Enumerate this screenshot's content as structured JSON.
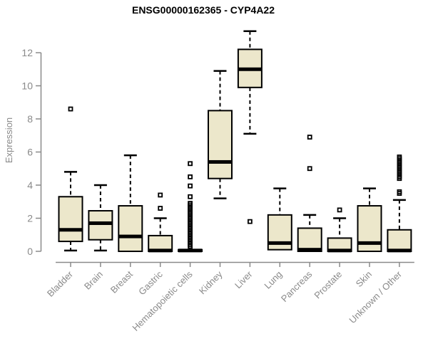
{
  "page": {
    "background": "#ffffff"
  },
  "chart_data": {
    "type": "boxplot",
    "title": "ENSG00000162365 - CYP4A22",
    "ylabel": "Expression",
    "xlabel": "",
    "ylim": [
      0,
      13.5
    ],
    "yticks": [
      0,
      2,
      4,
      6,
      8,
      10,
      12
    ],
    "grid": false,
    "legend": false,
    "categories": [
      "Bladder",
      "Brain",
      "Breast",
      "Gastric",
      "Hematopoietic cells",
      "Kidney",
      "Liver",
      "Lung",
      "Pancreas",
      "Prostate",
      "Skin",
      "Unknown / Other"
    ],
    "series": [
      {
        "category": "Bladder",
        "whisker_low": 0.05,
        "q1": 0.6,
        "median": 1.3,
        "q3": 3.3,
        "whisker_high": 4.8,
        "outliers": [
          8.6
        ]
      },
      {
        "category": "Brain",
        "whisker_low": 0.05,
        "q1": 0.7,
        "median": 1.7,
        "q3": 2.45,
        "whisker_high": 4.0,
        "outliers": []
      },
      {
        "category": "Breast",
        "whisker_low": null,
        "q1": 0.0,
        "median": 0.9,
        "q3": 2.75,
        "whisker_high": 5.8,
        "outliers": []
      },
      {
        "category": "Gastric",
        "whisker_low": null,
        "q1": 0.0,
        "median": 0.05,
        "q3": 0.95,
        "whisker_high": 2.0,
        "outliers": [
          2.6,
          3.4
        ]
      },
      {
        "category": "Hematopoietic cells",
        "whisker_low": null,
        "q1": 0.0,
        "median": 0.05,
        "q3": 0.1,
        "whisker_high": null,
        "outliers": [
          0.3,
          0.4,
          0.5,
          0.6,
          0.7,
          0.8,
          0.9,
          1.0,
          1.1,
          1.2,
          1.3,
          1.4,
          1.5,
          1.6,
          1.7,
          1.8,
          1.9,
          2.0,
          2.1,
          2.2,
          2.3,
          2.4,
          2.5,
          2.6,
          2.7,
          2.8,
          2.9,
          3.3,
          3.95,
          4.5,
          5.3
        ]
      },
      {
        "category": "Kidney",
        "whisker_low": 3.2,
        "q1": 4.4,
        "median": 5.4,
        "q3": 8.5,
        "whisker_high": 10.9,
        "outliers": []
      },
      {
        "category": "Liver",
        "whisker_low": 7.1,
        "q1": 9.9,
        "median": 11.0,
        "q3": 12.2,
        "whisker_high": 13.3,
        "outliers": [
          1.8
        ]
      },
      {
        "category": "Lung",
        "whisker_low": null,
        "q1": 0.1,
        "median": 0.5,
        "q3": 2.2,
        "whisker_high": 3.8,
        "outliers": []
      },
      {
        "category": "Pancreas",
        "whisker_low": null,
        "q1": 0.0,
        "median": 0.1,
        "q3": 1.4,
        "whisker_high": 2.2,
        "outliers": [
          5.0,
          6.9
        ]
      },
      {
        "category": "Prostate",
        "whisker_low": null,
        "q1": 0.0,
        "median": 0.05,
        "q3": 0.8,
        "whisker_high": 2.0,
        "outliers": [
          2.5
        ]
      },
      {
        "category": "Skin",
        "whisker_low": null,
        "q1": 0.0,
        "median": 0.5,
        "q3": 2.75,
        "whisker_high": 3.8,
        "outliers": []
      },
      {
        "category": "Unknown / Other",
        "whisker_low": null,
        "q1": 0.0,
        "median": 0.05,
        "q3": 1.3,
        "whisker_high": 3.1,
        "outliers": [
          3.5,
          3.6,
          4.4,
          4.5,
          4.6,
          4.7,
          4.8,
          4.9,
          5.0,
          5.1,
          5.2,
          5.3,
          5.4,
          5.5,
          5.6,
          5.7
        ]
      }
    ],
    "colors": {
      "box_fill": "#ece7cb",
      "box_stroke": "#000000",
      "median_color": "#000000",
      "whisker_color": "#000000",
      "outlier_color": "#000000",
      "axis_color": "#8a8a8a",
      "title_color": "#000000"
    }
  }
}
